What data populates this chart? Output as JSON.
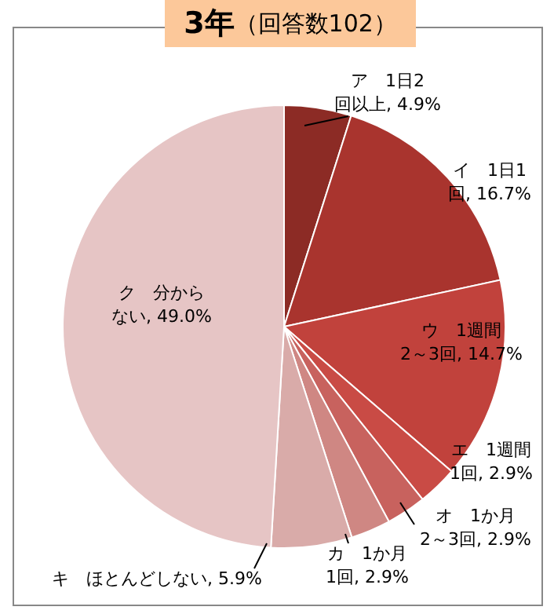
{
  "chart_data": {
    "type": "pie",
    "title": "3年（回答数102）",
    "categories": [
      "ア　1日2回以上",
      "イ　1日1回",
      "ウ　1週間2～3回",
      "エ　1週間1回",
      "オ　1か月2～3回",
      "カ　1か月1回",
      "キ　ほとんどしない",
      "ク　分からない"
    ],
    "values": [
      4.9,
      16.7,
      14.7,
      2.9,
      2.9,
      2.9,
      5.9,
      49.0
    ],
    "value_labels": [
      "4.9%",
      "16.7%",
      "14.7%",
      "2.9%",
      "2.9%",
      "2.9%",
      "5.9%",
      "49.0%"
    ],
    "colors": [
      "#8c2b25",
      "#a9342e",
      "#c1423c",
      "#c94b45",
      "#c8625e",
      "#cf8783",
      "#d9aba9",
      "#e6c5c5"
    ],
    "legend": false
  }
}
